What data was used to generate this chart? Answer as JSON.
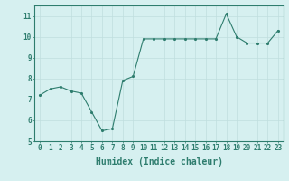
{
  "x": [
    0,
    1,
    2,
    3,
    4,
    5,
    6,
    7,
    8,
    9,
    10,
    11,
    12,
    13,
    14,
    15,
    16,
    17,
    18,
    19,
    20,
    21,
    22,
    23
  ],
  "y": [
    7.2,
    7.5,
    7.6,
    7.4,
    7.3,
    6.4,
    5.5,
    5.6,
    7.9,
    8.1,
    9.9,
    9.9,
    9.9,
    9.9,
    9.9,
    9.9,
    9.9,
    9.9,
    11.1,
    10.0,
    9.7,
    9.7,
    9.7,
    10.3
  ],
  "xlabel": "Humidex (Indice chaleur)",
  "ylim": [
    5,
    11.5
  ],
  "xlim": [
    -0.5,
    23.5
  ],
  "yticks": [
    5,
    6,
    7,
    8,
    9,
    10,
    11
  ],
  "xticks": [
    0,
    1,
    2,
    3,
    4,
    5,
    6,
    7,
    8,
    9,
    10,
    11,
    12,
    13,
    14,
    15,
    16,
    17,
    18,
    19,
    20,
    21,
    22,
    23
  ],
  "xtick_labels": [
    "0",
    "1",
    "2",
    "3",
    "4",
    "5",
    "6",
    "7",
    "8",
    "9",
    "10",
    "11",
    "12",
    "13",
    "14",
    "15",
    "16",
    "17",
    "18",
    "19",
    "20",
    "21",
    "22",
    "23"
  ],
  "line_color": "#2e7d6e",
  "marker_color": "#2e7d6e",
  "bg_color": "#d6f0f0",
  "grid_color": "#c0dede",
  "axis_color": "#2e7d6e",
  "tick_color": "#2e7d6e",
  "label_color": "#2e7d6e",
  "font_size_label": 7,
  "font_size_tick": 5.5
}
